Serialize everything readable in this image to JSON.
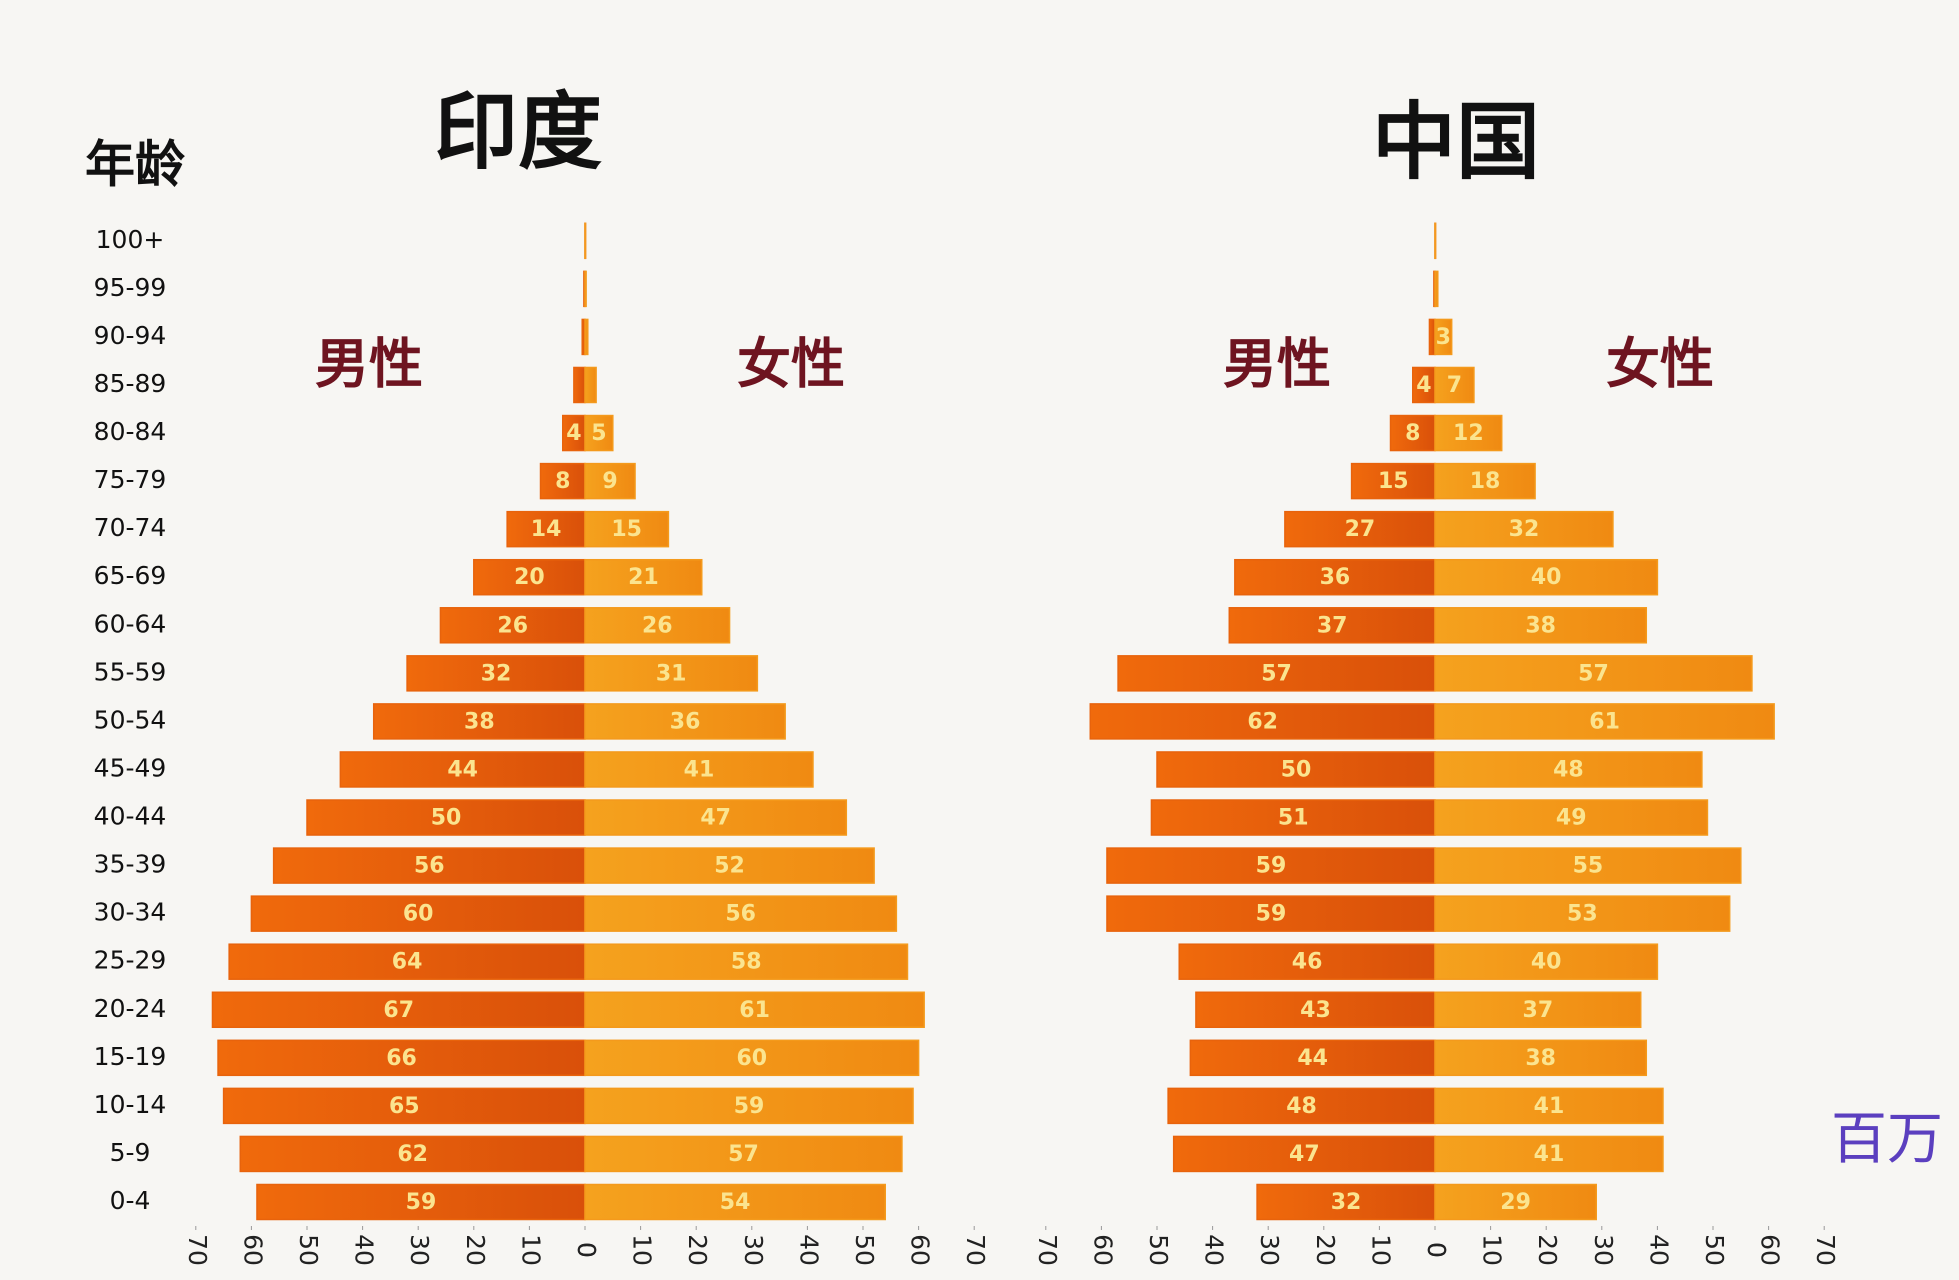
{
  "chart_data": [
    {
      "type": "pyramid",
      "title": "印度",
      "y_label": "年龄",
      "categories": [
        "0-4",
        "5-9",
        "10-14",
        "15-19",
        "20-24",
        "25-29",
        "30-34",
        "35-39",
        "40-44",
        "45-49",
        "50-54",
        "55-59",
        "60-64",
        "65-69",
        "70-74",
        "75-79",
        "80-84",
        "85-89",
        "90-94",
        "95-99",
        "100+"
      ],
      "series": [
        {
          "name": "男性",
          "color": "#e8630c",
          "values": [
            59,
            62,
            65,
            66,
            67,
            64,
            60,
            56,
            50,
            44,
            38,
            32,
            26,
            20,
            14,
            8,
            4,
            2,
            0.5,
            0.2,
            0
          ]
        },
        {
          "name": "女性",
          "color": "#f49a1c",
          "values": [
            54,
            57,
            59,
            60,
            61,
            58,
            56,
            52,
            47,
            41,
            36,
            31,
            26,
            21,
            15,
            9,
            5,
            2,
            0.5,
            0.2,
            0
          ]
        }
      ],
      "xlim": [
        0,
        70
      ],
      "xticks": [
        0,
        10,
        20,
        30,
        40,
        50,
        60,
        70
      ]
    },
    {
      "type": "pyramid",
      "title": "中国",
      "unit": "百万",
      "series": [
        {
          "name": "男性",
          "color": "#e8630c",
          "values": [
            32,
            47,
            48,
            44,
            43,
            46,
            59,
            59,
            51,
            50,
            62,
            57,
            37,
            36,
            27,
            15,
            8,
            4,
            1,
            0.2,
            0
          ]
        },
        {
          "name": "女性",
          "color": "#f49a1c",
          "values": [
            29,
            41,
            41,
            38,
            37,
            40,
            53,
            55,
            49,
            48,
            61,
            57,
            38,
            40,
            32,
            18,
            12,
            7,
            3,
            0.5,
            0
          ]
        }
      ],
      "xlim": [
        0,
        70
      ],
      "xticks": [
        0,
        10,
        20,
        30,
        40,
        50,
        60,
        70
      ]
    }
  ]
}
